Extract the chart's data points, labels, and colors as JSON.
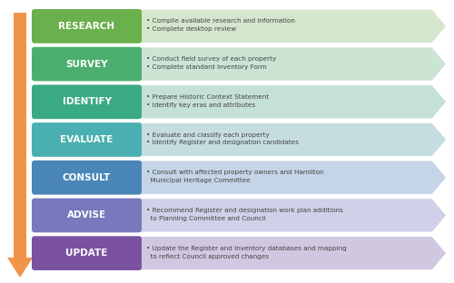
{
  "steps": [
    {
      "label": "RESEARCH",
      "text": "• Compile available research and information\n• Complete desktop review",
      "label_color": "#6ab04c",
      "arrow_color": "#d4e6cc"
    },
    {
      "label": "SURVEY",
      "text": "• Conduct field survey of each property\n• Complete standard Inventory Form",
      "label_color": "#4cae6e",
      "arrow_color": "#cce4d4"
    },
    {
      "label": "IDENTIFY",
      "text": "• Prepare Historic Context Statement\n• Identify key eras and attributes",
      "label_color": "#3aaa84",
      "arrow_color": "#c5e0d8"
    },
    {
      "label": "EVALUATE",
      "text": "• Evaluate and classify each property\n• Identify Register and designation candidates",
      "label_color": "#4aafb0",
      "arrow_color": "#c5dde0"
    },
    {
      "label": "CONSULT",
      "text": "• Consult with affected property owners and Hamilton\n  Municipal Heritage Committee",
      "label_color": "#4a86b8",
      "arrow_color": "#c5d5e8"
    },
    {
      "label": "ADVISE",
      "text": "• Recommend Register and designation work plan additions\n  to Planning Committee and Council",
      "label_color": "#7878bc",
      "arrow_color": "#d0d0e8"
    },
    {
      "label": "UPDATE",
      "text": "• Update the Register and Inventory databases and mapping\n  to reflect Council approved changes",
      "label_color": "#7a52a0",
      "arrow_color": "#d0c8e0"
    }
  ],
  "bg_color": "#ffffff",
  "text_color": "#444444",
  "big_arrow_color": "#f0944a",
  "fig_width": 5.0,
  "fig_height": 3.12,
  "dpi": 100
}
